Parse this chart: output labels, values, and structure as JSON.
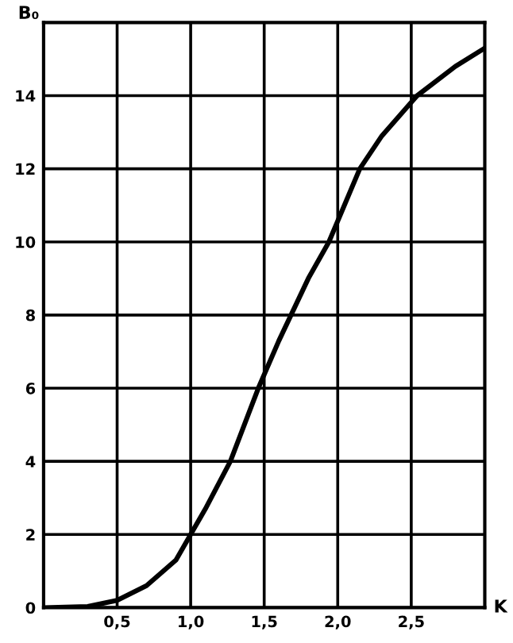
{
  "chart_data": {
    "type": "line",
    "xlabel": "K",
    "ylabel": "B₀",
    "x": [
      0,
      0.3,
      0.5,
      0.7,
      0.9,
      1.0,
      1.1,
      1.27,
      1.46,
      1.6,
      1.8,
      1.94,
      2.15,
      2.3,
      2.54,
      2.8,
      3.0
    ],
    "series": [
      {
        "color": "#000000",
        "values": [
          0,
          0.03,
          0.2,
          0.6,
          1.3,
          2.0,
          2.7,
          4.0,
          6.0,
          7.3,
          9.0,
          10.0,
          12.0,
          12.9,
          14.0,
          14.8,
          15.3
        ]
      }
    ],
    "xlim": [
      0,
      3.0
    ],
    "ylim": [
      0,
      16
    ],
    "xticks": [
      {
        "value": 0.5,
        "label": "0,5"
      },
      {
        "value": 1.0,
        "label": "1,0"
      },
      {
        "value": 1.5,
        "label": "1,5"
      },
      {
        "value": 2.0,
        "label": "2,0"
      },
      {
        "value": 2.5,
        "label": "2,5"
      }
    ],
    "yticks": [
      0,
      2,
      4,
      6,
      8,
      10,
      12,
      14
    ],
    "grid": true,
    "marker": "none",
    "line_style": "solid"
  }
}
